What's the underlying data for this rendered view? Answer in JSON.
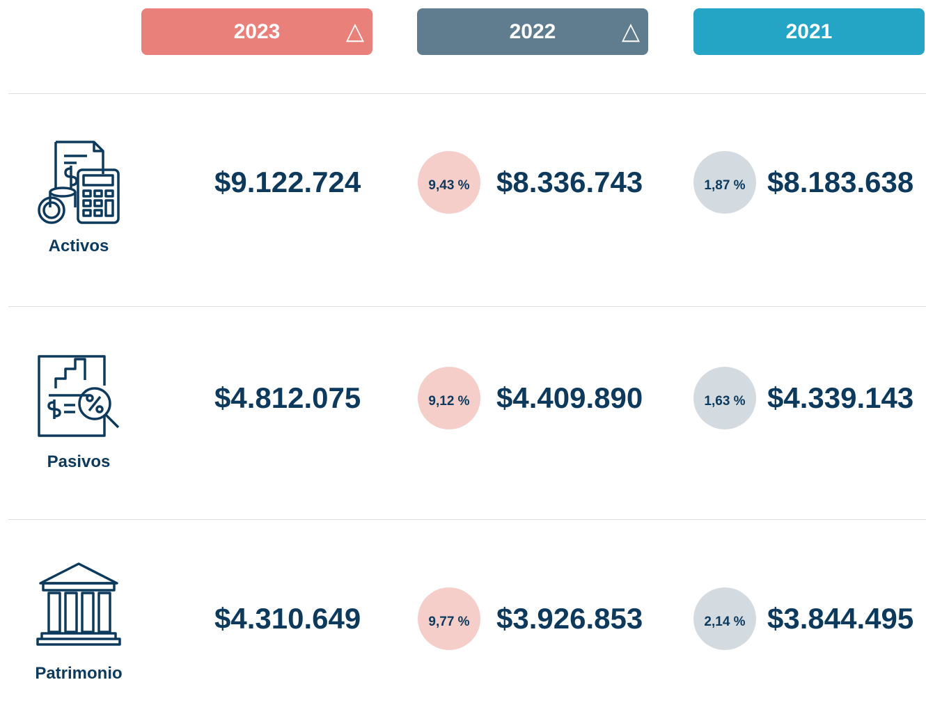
{
  "header": {
    "columns": [
      {
        "year": "2023",
        "delta": "△"
      },
      {
        "year": "2022",
        "delta": "△"
      },
      {
        "year": "2021"
      }
    ]
  },
  "rows": [
    {
      "label": "Activos",
      "values": [
        "$9.122.724",
        "$8.336.743",
        "$8.183.638"
      ],
      "changes": [
        "9,43 %",
        "1,87 %"
      ]
    },
    {
      "label": "Pasivos",
      "values": [
        "$4.812.075",
        "$4.409.890",
        "$4.339.143"
      ],
      "changes": [
        "9,12 %",
        "1,63 %"
      ]
    },
    {
      "label": "Patrimonio",
      "values": [
        "$4.310.649",
        "$3.926.853",
        "$3.844.495"
      ],
      "changes": [
        "9,77 %",
        "2,14 %"
      ]
    }
  ]
}
